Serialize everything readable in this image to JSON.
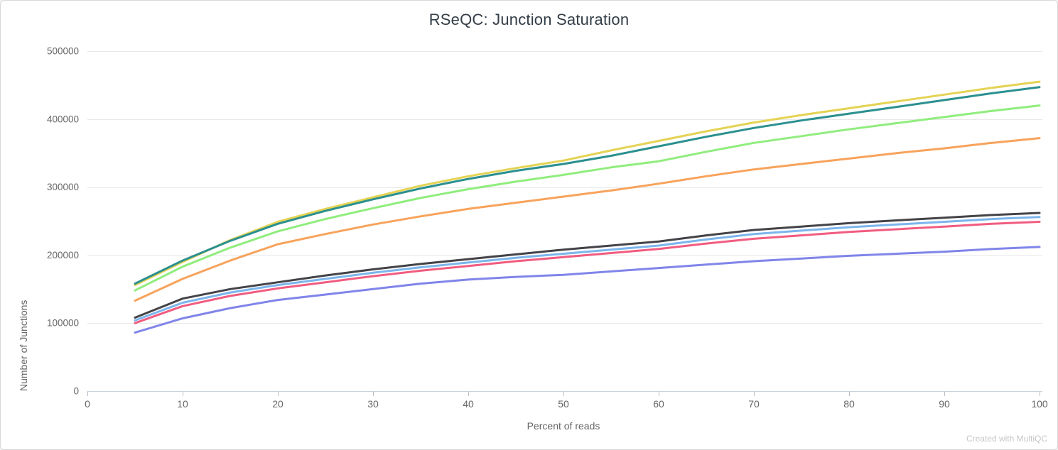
{
  "panel": {
    "background": "#ffffff",
    "border_color": "#d7d7d7"
  },
  "header": {
    "title": "RSeQC: Junction Saturation",
    "title_color": "#333d47"
  },
  "watermark": "Created with MultiQC",
  "style": {
    "grid_color": "#e8e8e8",
    "axis_line_color": "#ccd2dc",
    "tick_color": "#b8bec8",
    "tick_label_color": "#666666",
    "line_width": 3
  },
  "chart_data": {
    "type": "line",
    "title": "RSeQC: Junction Saturation",
    "xlabel": "Percent of reads",
    "ylabel": "Number of Junctions",
    "xlim": [
      0,
      100
    ],
    "ylim": [
      0,
      500000
    ],
    "x_ticks": [
      0,
      10,
      20,
      30,
      40,
      50,
      60,
      70,
      80,
      90,
      100
    ],
    "y_ticks": [
      0,
      100000,
      200000,
      300000,
      400000,
      500000
    ],
    "grid": "horizontal",
    "legend": "none",
    "x": [
      5,
      10,
      15,
      20,
      25,
      30,
      35,
      40,
      45,
      50,
      55,
      60,
      65,
      70,
      75,
      80,
      85,
      90,
      95,
      100
    ],
    "series": [
      {
        "name": "light-blue",
        "color": "#7cb5ec",
        "values": [
          104000,
          130000,
          145000,
          156000,
          165000,
          174000,
          182000,
          189000,
          196000,
          202000,
          208000,
          214000,
          223000,
          231000,
          236000,
          241000,
          245000,
          249000,
          253000,
          256000
        ]
      },
      {
        "name": "dark-gray",
        "color": "#434348",
        "values": [
          108000,
          136000,
          150000,
          160000,
          170000,
          179000,
          187000,
          194000,
          201000,
          208000,
          214000,
          220000,
          229000,
          237000,
          242000,
          247000,
          251000,
          255000,
          259000,
          262000
        ]
      },
      {
        "name": "green",
        "color": "#90ed7d",
        "values": [
          148000,
          183000,
          211000,
          235000,
          253000,
          269000,
          284000,
          297000,
          308000,
          318000,
          329000,
          338000,
          352000,
          365000,
          375000,
          385000,
          394000,
          403000,
          412000,
          420000
        ]
      },
      {
        "name": "orange",
        "color": "#f7a35c",
        "values": [
          133000,
          165000,
          192000,
          216000,
          231000,
          245000,
          257000,
          268000,
          277000,
          286000,
          295000,
          305000,
          316000,
          326000,
          334000,
          342000,
          350000,
          357000,
          365000,
          372000
        ]
      },
      {
        "name": "purple",
        "color": "#8085e9",
        "values": [
          86000,
          107000,
          122000,
          134000,
          142000,
          150000,
          158000,
          164000,
          168000,
          171000,
          176000,
          181000,
          186000,
          191000,
          195000,
          199000,
          202000,
          205000,
          209000,
          212000
        ]
      },
      {
        "name": "pink",
        "color": "#f15c80",
        "values": [
          100000,
          125000,
          140000,
          151000,
          160000,
          169000,
          177000,
          184000,
          191000,
          197000,
          203000,
          209000,
          217000,
          224000,
          229000,
          234000,
          238000,
          242000,
          246000,
          249000
        ]
      },
      {
        "name": "yellow",
        "color": "#e4d354",
        "values": [
          156000,
          190000,
          222000,
          249000,
          268000,
          285000,
          302000,
          316000,
          328000,
          339000,
          354000,
          368000,
          382000,
          395000,
          406000,
          416000,
          426000,
          436000,
          446000,
          455000
        ]
      },
      {
        "name": "teal",
        "color": "#2b908f",
        "values": [
          158000,
          192000,
          221000,
          246000,
          265000,
          282000,
          298000,
          312000,
          324000,
          334000,
          346000,
          360000,
          374000,
          387000,
          398000,
          408000,
          418000,
          428000,
          438000,
          447000
        ]
      }
    ]
  }
}
